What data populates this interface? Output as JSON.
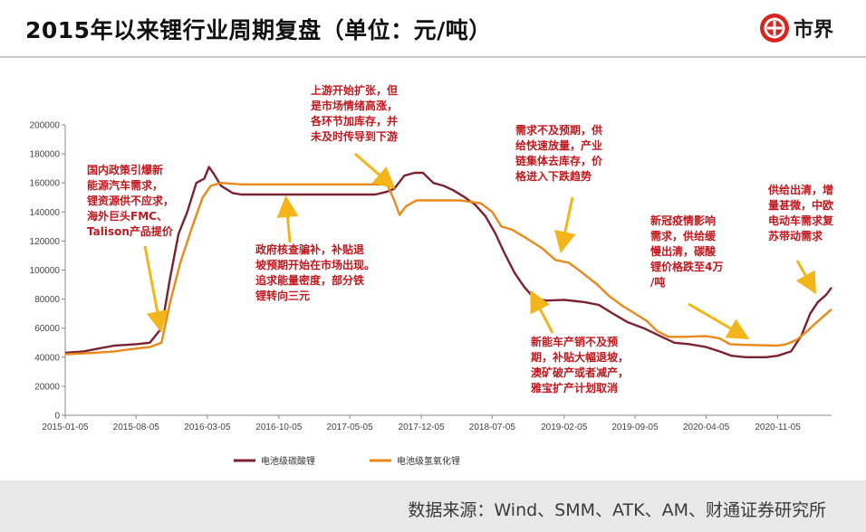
{
  "header": {
    "title": "2015年以来锂行业周期复盘（单位：元/吨）",
    "logo_text": "市界"
  },
  "footer": {
    "source": "数据来源：Wind、SMM、ATK、AM、财通证券研究所"
  },
  "annotations": [
    {
      "id": "a1",
      "lines": [
        "国内政策引爆新",
        "能源汽车需求，",
        "锂资源供不应求，",
        "海外巨头FMC、",
        "Talison产品提价"
      ]
    },
    {
      "id": "a2",
      "lines": [
        "政府核查骗补，补贴退",
        "坡预期开始在市场出现。",
        "追求能量密度，部分铁",
        "锂转向三元"
      ]
    },
    {
      "id": "a3",
      "lines": [
        "上游开始扩张，但",
        "是市场情绪高涨，",
        "各环节加库存，并",
        "未及时传导到下游"
      ]
    },
    {
      "id": "a4",
      "lines": [
        "需求不及预期，供",
        "给快速放量，产业",
        "链集体去库存，价",
        "格进入下跌趋势"
      ]
    },
    {
      "id": "a5",
      "lines": [
        "新能车产销不及预",
        "期，补贴大幅退坡，",
        "澳矿破产或者减产，",
        "雅宝扩产计划取消"
      ]
    },
    {
      "id": "a6",
      "lines": [
        "新冠疫情影响",
        "需求，供给缓",
        "慢出清，碳酸",
        "锂价格跌至4万",
        "/吨"
      ]
    },
    {
      "id": "a7",
      "lines": [
        "供给出清，增",
        "量甚微，中欧",
        "电动车需求复",
        "苏带动需求"
      ]
    }
  ],
  "chart_data": {
    "type": "line",
    "x_ticks": [
      "2015-01-05",
      "2015-08-05",
      "2016-03-05",
      "2016-10-05",
      "2017-05-05",
      "2017-12-05",
      "2018-07-05",
      "2019-02-05",
      "2019-09-05",
      "2020-04-05",
      "2020-11-05"
    ],
    "y_ticks": [
      "0",
      "20000",
      "40000",
      "60000",
      "80000",
      "100000",
      "120000",
      "140000",
      "160000",
      "180000",
      "200000"
    ],
    "ylim": [
      0,
      200000
    ],
    "xlim": [
      "2015-01-05",
      "2021-04-15"
    ],
    "series": [
      {
        "name": "电池级碳酸锂",
        "color": "#7a2230",
        "points": [
          [
            "2015-01-05",
            43000
          ],
          [
            "2015-03-01",
            44000
          ],
          [
            "2015-04-15",
            46000
          ],
          [
            "2015-06-01",
            48000
          ],
          [
            "2015-08-05",
            49000
          ],
          [
            "2015-09-15",
            50000
          ],
          [
            "2015-10-20",
            60000
          ],
          [
            "2015-11-15",
            95000
          ],
          [
            "2015-12-10",
            125000
          ],
          [
            "2016-01-05",
            140000
          ],
          [
            "2016-02-01",
            160000
          ],
          [
            "2016-02-25",
            163000
          ],
          [
            "2016-03-10",
            171000
          ],
          [
            "2016-03-25",
            166000
          ],
          [
            "2016-04-15",
            158000
          ],
          [
            "2016-05-20",
            153000
          ],
          [
            "2016-06-15",
            152000
          ],
          [
            "2017-07-20",
            152000
          ],
          [
            "2017-08-25",
            154000
          ],
          [
            "2017-09-15",
            156000
          ],
          [
            "2017-10-15",
            165000
          ],
          [
            "2017-11-15",
            167000
          ],
          [
            "2017-12-10",
            167000
          ],
          [
            "2018-01-10",
            160000
          ],
          [
            "2018-02-10",
            158000
          ],
          [
            "2018-03-10",
            155000
          ],
          [
            "2018-04-15",
            150000
          ],
          [
            "2018-05-15",
            145000
          ],
          [
            "2018-06-15",
            137000
          ],
          [
            "2018-07-15",
            125000
          ],
          [
            "2018-08-10",
            112000
          ],
          [
            "2018-09-10",
            98000
          ],
          [
            "2018-10-10",
            88000
          ],
          [
            "2018-11-10",
            80000
          ],
          [
            "2018-12-15",
            79000
          ],
          [
            "2019-02-05",
            79500
          ],
          [
            "2019-04-05",
            78000
          ],
          [
            "2019-05-20",
            76000
          ],
          [
            "2019-07-01",
            70000
          ],
          [
            "2019-08-15",
            64000
          ],
          [
            "2019-10-01",
            60000
          ],
          [
            "2019-11-15",
            55000
          ],
          [
            "2020-01-01",
            50000
          ],
          [
            "2020-02-15",
            49000
          ],
          [
            "2020-04-05",
            47000
          ],
          [
            "2020-05-15",
            44000
          ],
          [
            "2020-06-20",
            41000
          ],
          [
            "2020-08-01",
            40000
          ],
          [
            "2020-10-01",
            40000
          ],
          [
            "2020-11-05",
            41000
          ],
          [
            "2020-12-15",
            44000
          ],
          [
            "2021-01-15",
            55000
          ],
          [
            "2021-02-10",
            70000
          ],
          [
            "2021-03-05",
            78000
          ],
          [
            "2021-03-30",
            83000
          ],
          [
            "2021-04-15",
            88000
          ]
        ]
      },
      {
        "name": "电池级氢氧化锂",
        "color": "#e8891a",
        "points": [
          [
            "2015-01-05",
            42000
          ],
          [
            "2015-04-01",
            43000
          ],
          [
            "2015-06-01",
            44000
          ],
          [
            "2015-08-05",
            46000
          ],
          [
            "2015-09-15",
            47000
          ],
          [
            "2015-10-20",
            50000
          ],
          [
            "2015-11-15",
            78000
          ],
          [
            "2015-12-15",
            105000
          ],
          [
            "2016-01-20",
            130000
          ],
          [
            "2016-02-20",
            150000
          ],
          [
            "2016-03-15",
            158000
          ],
          [
            "2016-04-15",
            160000
          ],
          [
            "2016-06-15",
            159000
          ],
          [
            "2017-08-25",
            159000
          ],
          [
            "2017-09-15",
            148000
          ],
          [
            "2017-10-01",
            138000
          ],
          [
            "2017-10-20",
            144000
          ],
          [
            "2017-11-20",
            148000
          ],
          [
            "2018-04-01",
            148000
          ],
          [
            "2018-06-01",
            146000
          ],
          [
            "2018-07-05",
            140000
          ],
          [
            "2018-08-01",
            130000
          ],
          [
            "2018-09-01",
            128000
          ],
          [
            "2018-10-15",
            122000
          ],
          [
            "2018-12-01",
            115000
          ],
          [
            "2019-01-10",
            107000
          ],
          [
            "2019-02-20",
            105000
          ],
          [
            "2019-04-01",
            98000
          ],
          [
            "2019-05-15",
            90000
          ],
          [
            "2019-06-20",
            82000
          ],
          [
            "2019-08-01",
            75000
          ],
          [
            "2019-09-05",
            70000
          ],
          [
            "2019-10-10",
            65000
          ],
          [
            "2019-11-10",
            58000
          ],
          [
            "2019-12-15",
            54000
          ],
          [
            "2020-02-01",
            54000
          ],
          [
            "2020-04-05",
            54500
          ],
          [
            "2020-05-15",
            53000
          ],
          [
            "2020-06-15",
            49000
          ],
          [
            "2020-08-01",
            48500
          ],
          [
            "2020-11-05",
            48000
          ],
          [
            "2020-12-01",
            49000
          ],
          [
            "2021-01-01",
            52000
          ],
          [
            "2021-02-01",
            58000
          ],
          [
            "2021-03-01",
            64000
          ],
          [
            "2021-04-15",
            73000
          ]
        ]
      }
    ],
    "legend_position": "bottom",
    "grid": false
  }
}
